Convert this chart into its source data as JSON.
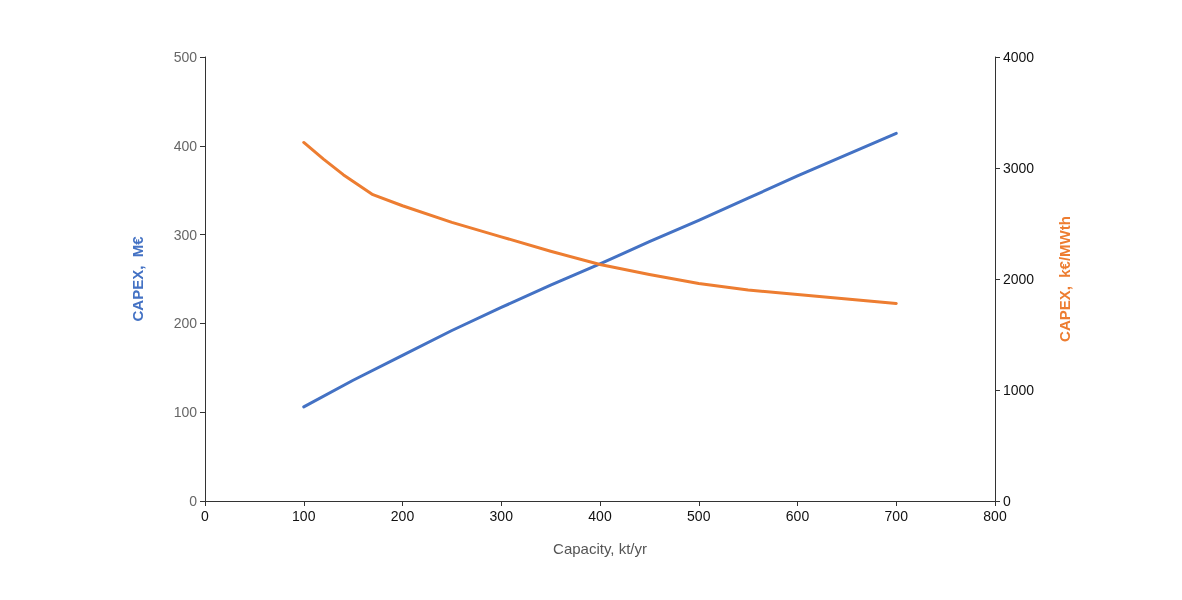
{
  "chart_data": {
    "type": "line",
    "xlabel": "Capacity, kt/yr",
    "ylabel": "CAPEX,  M€",
    "y2label": "CAPEX,  k€/MWth",
    "xlim": [
      0,
      800
    ],
    "xticks": [
      0,
      100,
      200,
      300,
      400,
      500,
      600,
      700,
      800
    ],
    "ylim": [
      0,
      500
    ],
    "yticks": [
      0,
      100,
      200,
      300,
      400,
      500
    ],
    "y2lim": [
      0,
      4000
    ],
    "y2ticks": [
      0,
      1000,
      2000,
      3000,
      4000
    ],
    "grid": false,
    "marker": "none",
    "line_style": "solid",
    "series": [
      {
        "color": "#4472c4",
        "x": [
          100,
          150,
          200,
          250,
          300,
          350,
          400,
          450,
          500,
          550,
          600,
          650,
          700
        ],
        "values": [
          106,
          136,
          164,
          192,
          218,
          243,
          267,
          292,
          316,
          341,
          366,
          390,
          414
        ]
      },
      {
        "color": "#ed7d31",
        "axis": "y2",
        "x": [
          100,
          120,
          140,
          170,
          200,
          250,
          300,
          350,
          400,
          450,
          500,
          550,
          600,
          650,
          700
        ],
        "values": [
          3230,
          3080,
          2940,
          2760,
          2660,
          2510,
          2380,
          2250,
          2130,
          2040,
          1960,
          1900,
          1860,
          1820,
          1780
        ]
      }
    ]
  }
}
